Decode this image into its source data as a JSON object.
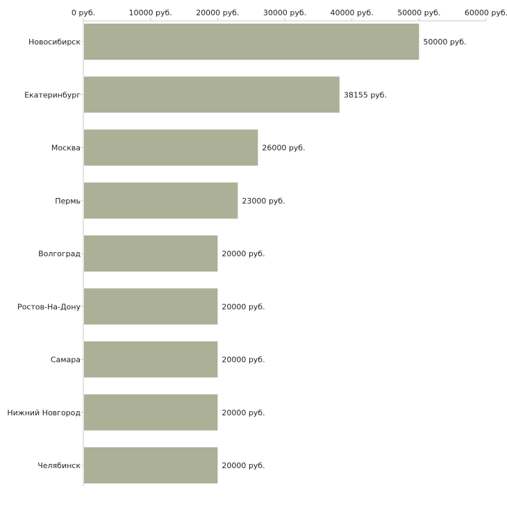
{
  "chart_data": {
    "type": "bar",
    "orientation": "horizontal",
    "title": "",
    "xlabel": "",
    "ylabel": "",
    "xlim": [
      0,
      60000
    ],
    "x_ticks": [
      0,
      10000,
      20000,
      30000,
      40000,
      50000,
      60000
    ],
    "tick_labels": [
      "0 руб.",
      "10000 руб.",
      "20000 руб.",
      "30000 руб.",
      "40000 руб.",
      "50000 руб.",
      "60000 руб."
    ],
    "axis_position": "top",
    "grid": false,
    "categories": [
      "Новосибирск",
      "Екатеринбург",
      "Москва",
      "Пермь",
      "Волгоград",
      "Ростов-На-Дону",
      "Самара",
      "Нижний Новгород",
      "Челябинск"
    ],
    "values": [
      50000,
      38155,
      26000,
      23000,
      20000,
      20000,
      20000,
      20000,
      20000
    ],
    "value_labels": [
      "50000 руб.",
      "38155 руб.",
      "26000 руб.",
      "23000 руб.",
      "20000 руб.",
      "20000 руб.",
      "20000 руб.",
      "20000 руб.",
      "20000 руб."
    ],
    "colors": {
      "bar": "#abb096",
      "axis": "#c8c8c8",
      "text": "#222222"
    }
  }
}
